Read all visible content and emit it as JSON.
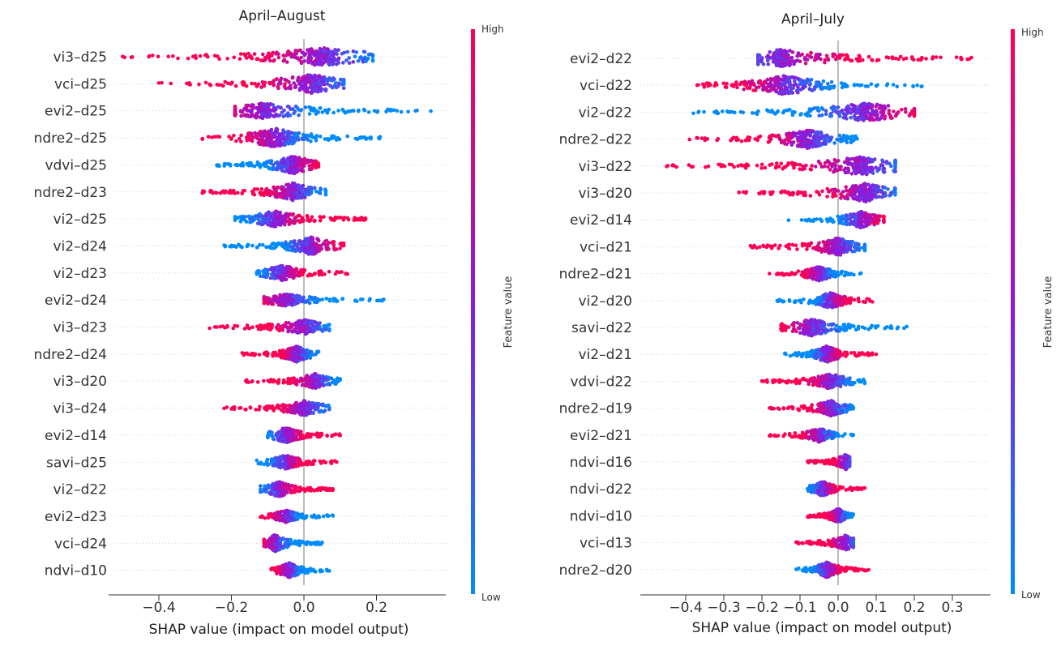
{
  "chart_data": [
    {
      "type": "scatter",
      "subtype": "shap-beeswarm",
      "title": "April–August",
      "xlabel": "SHAP value (impact on model output)",
      "xlim": [
        -0.53,
        0.38
      ],
      "xticks": [
        -0.4,
        -0.2,
        0.0,
        0.2
      ],
      "xtick_labels": [
        "−0.4",
        "−0.2",
        "0.0",
        "0.2"
      ],
      "colorbar": {
        "title": "Feature value",
        "high": "High",
        "low": "Low"
      },
      "features": [
        {
          "name": "vi3–d25",
          "min": -0.5,
          "max": 0.19,
          "peak": 0.05,
          "lowSide": "pos",
          "density": 0.95
        },
        {
          "name": "vci–d25",
          "min": -0.4,
          "max": 0.11,
          "peak": 0.02,
          "lowSide": "pos",
          "density": 0.95
        },
        {
          "name": "evi2–d25",
          "min": -0.19,
          "max": 0.35,
          "peak": -0.11,
          "lowSide": "pos",
          "density": 0.8
        },
        {
          "name": "ndre2–d25",
          "min": -0.28,
          "max": 0.21,
          "peak": -0.08,
          "lowSide": "pos",
          "density": 1.0
        },
        {
          "name": "vdvi–d25",
          "min": -0.24,
          "max": 0.04,
          "peak": -0.03,
          "lowSide": "neg",
          "density": 0.95
        },
        {
          "name": "ndre2–d23",
          "min": -0.28,
          "max": 0.06,
          "peak": -0.03,
          "lowSide": "pos",
          "density": 0.9
        },
        {
          "name": "vi2–d25",
          "min": -0.19,
          "max": 0.17,
          "peak": -0.08,
          "lowSide": "neg",
          "density": 0.85
        },
        {
          "name": "vi2–d24",
          "min": -0.22,
          "max": 0.11,
          "peak": 0.02,
          "lowSide": "neg",
          "density": 0.9
        },
        {
          "name": "vi2–d23",
          "min": -0.13,
          "max": 0.12,
          "peak": -0.06,
          "lowSide": "neg",
          "density": 0.85
        },
        {
          "name": "evi2–d24",
          "min": -0.11,
          "max": 0.22,
          "peak": -0.05,
          "lowSide": "pos",
          "density": 0.6
        },
        {
          "name": "vi3–d23",
          "min": -0.26,
          "max": 0.07,
          "peak": 0.0,
          "lowSide": "pos",
          "density": 0.75
        },
        {
          "name": "ndre2–d24",
          "min": -0.17,
          "max": 0.04,
          "peak": -0.02,
          "lowSide": "pos",
          "density": 0.8
        },
        {
          "name": "vi3–d20",
          "min": -0.16,
          "max": 0.1,
          "peak": 0.03,
          "lowSide": "pos",
          "density": 0.75
        },
        {
          "name": "vi3–d24",
          "min": -0.22,
          "max": 0.07,
          "peak": 0.0,
          "lowSide": "pos",
          "density": 0.75
        },
        {
          "name": "evi2–d14",
          "min": -0.1,
          "max": 0.1,
          "peak": -0.05,
          "lowSide": "neg",
          "density": 0.8
        },
        {
          "name": "savi–d25",
          "min": -0.13,
          "max": 0.09,
          "peak": -0.05,
          "lowSide": "neg",
          "density": 0.75
        },
        {
          "name": "vi2–d22",
          "min": -0.12,
          "max": 0.08,
          "peak": -0.07,
          "lowSide": "neg",
          "density": 0.8
        },
        {
          "name": "evi2–d23",
          "min": -0.12,
          "max": 0.08,
          "peak": -0.05,
          "lowSide": "pos",
          "density": 0.6
        },
        {
          "name": "vci–d24",
          "min": -0.11,
          "max": 0.05,
          "peak": -0.08,
          "lowSide": "pos",
          "density": 0.85
        },
        {
          "name": "ndvi–d10",
          "min": -0.09,
          "max": 0.07,
          "peak": -0.04,
          "lowSide": "pos",
          "density": 0.8
        }
      ]
    },
    {
      "type": "scatter",
      "subtype": "shap-beeswarm",
      "title": "April–July",
      "xlabel": "SHAP value (impact on model output)",
      "xlim": [
        -0.5,
        0.4
      ],
      "xticks": [
        -0.4,
        -0.3,
        -0.2,
        -0.1,
        0.0,
        0.1,
        0.2,
        0.3
      ],
      "xtick_labels": [
        "−0.4",
        "−0.3",
        "−0.2",
        "−0.1",
        "0.0",
        "0.1",
        "0.2",
        "0.3"
      ],
      "colorbar": {
        "title": "Feature value",
        "high": "High",
        "low": "Low"
      },
      "features": [
        {
          "name": "evi2–d22",
          "min": -0.21,
          "max": 0.35,
          "peak": -0.15,
          "lowSide": "neg",
          "density": 0.9
        },
        {
          "name": "vci–d22",
          "min": -0.37,
          "max": 0.22,
          "peak": -0.14,
          "lowSide": "pos",
          "density": 1.0
        },
        {
          "name": "vi2–d22",
          "min": -0.38,
          "max": 0.2,
          "peak": 0.07,
          "lowSide": "neg",
          "density": 1.0
        },
        {
          "name": "ndre2–d22",
          "min": -0.39,
          "max": 0.05,
          "peak": -0.08,
          "lowSide": "pos",
          "density": 0.95
        },
        {
          "name": "vi3–d22",
          "min": -0.45,
          "max": 0.15,
          "peak": 0.06,
          "lowSide": "pos",
          "density": 0.95
        },
        {
          "name": "vi3–d20",
          "min": -0.26,
          "max": 0.15,
          "peak": 0.07,
          "lowSide": "pos",
          "density": 0.95
        },
        {
          "name": "evi2–d14",
          "min": -0.13,
          "max": 0.12,
          "peak": 0.06,
          "lowSide": "neg",
          "density": 0.85
        },
        {
          "name": "vci–d21",
          "min": -0.23,
          "max": 0.07,
          "peak": 0.0,
          "lowSide": "pos",
          "density": 0.9
        },
        {
          "name": "ndre2–d21",
          "min": -0.18,
          "max": 0.06,
          "peak": -0.05,
          "lowSide": "pos",
          "density": 0.8
        },
        {
          "name": "vi2–d20",
          "min": -0.16,
          "max": 0.09,
          "peak": -0.02,
          "lowSide": "neg",
          "density": 0.85
        },
        {
          "name": "savi–d22",
          "min": -0.15,
          "max": 0.18,
          "peak": -0.07,
          "lowSide": "pos",
          "density": 0.85
        },
        {
          "name": "vi2–d21",
          "min": -0.14,
          "max": 0.1,
          "peak": -0.03,
          "lowSide": "neg",
          "density": 0.85
        },
        {
          "name": "vdvi–d22",
          "min": -0.2,
          "max": 0.07,
          "peak": -0.02,
          "lowSide": "pos",
          "density": 0.8
        },
        {
          "name": "ndre2–d19",
          "min": -0.18,
          "max": 0.04,
          "peak": -0.02,
          "lowSide": "pos",
          "density": 0.8
        },
        {
          "name": "evi2–d21",
          "min": -0.18,
          "max": 0.04,
          "peak": -0.05,
          "lowSide": "pos",
          "density": 0.7
        },
        {
          "name": "ndvi–d16",
          "min": -0.08,
          "max": 0.03,
          "peak": 0.02,
          "lowSide": "pos",
          "density": 0.75
        },
        {
          "name": "ndvi–d22",
          "min": -0.08,
          "max": 0.07,
          "peak": -0.04,
          "lowSide": "neg",
          "density": 0.75
        },
        {
          "name": "ndvi–d10",
          "min": -0.08,
          "max": 0.04,
          "peak": 0.0,
          "lowSide": "pos",
          "density": 0.75
        },
        {
          "name": "vci–d13",
          "min": -0.11,
          "max": 0.04,
          "peak": 0.02,
          "lowSide": "pos",
          "density": 0.75
        },
        {
          "name": "ndre2–d20",
          "min": -0.11,
          "max": 0.08,
          "peak": -0.03,
          "lowSide": "neg",
          "density": 0.8
        }
      ]
    }
  ],
  "colors": {
    "high": "#ff0052",
    "mid": "#8a1ae0",
    "low": "#008bfb",
    "zero_line": "#999999",
    "axis": "#333333",
    "row_guide": "#cccccc"
  }
}
